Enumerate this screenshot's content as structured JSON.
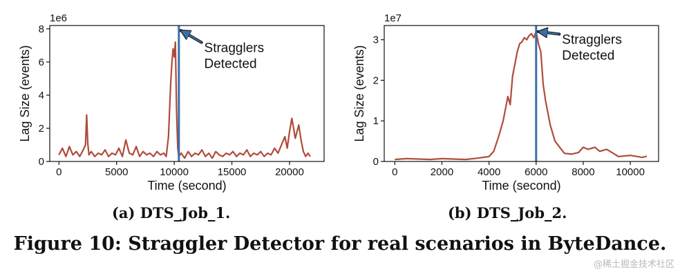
{
  "chart_data": [
    {
      "type": "line",
      "caption": "(a) DTS_Job_1.",
      "xlabel": "Time (second)",
      "ylabel": "Lag Size (events)",
      "y_offset_text": "1e6",
      "xlim": [
        -800,
        23000
      ],
      "ylim": [
        0,
        8.2
      ],
      "x_ticks": [
        0,
        5000,
        10000,
        15000,
        20000
      ],
      "x_tick_labels": [
        "0",
        "5000",
        "10000",
        "15000",
        "20000"
      ],
      "y_ticks": [
        0,
        2,
        4,
        6,
        8
      ],
      "y_tick_labels": [
        "0",
        "2",
        "4",
        "6",
        "8"
      ],
      "grid": false,
      "series": [
        {
          "color": "#b04a3b",
          "x": [
            0,
            300,
            600,
            900,
            1200,
            1500,
            1800,
            2100,
            2300,
            2400,
            2500,
            2600,
            2800,
            3100,
            3400,
            3700,
            4000,
            4300,
            4600,
            4900,
            5200,
            5500,
            5800,
            6100,
            6400,
            6700,
            7000,
            7300,
            7600,
            7900,
            8200,
            8500,
            8800,
            9100,
            9300,
            9500,
            9600,
            9700,
            9800,
            9900,
            10000,
            10100,
            10200,
            10300,
            10400,
            10600,
            10900,
            11200,
            11500,
            11800,
            12100,
            12400,
            12700,
            13000,
            13300,
            13600,
            13900,
            14200,
            14500,
            14800,
            15100,
            15400,
            15700,
            16000,
            16300,
            16600,
            16900,
            17200,
            17500,
            17800,
            18100,
            18400,
            18700,
            19000,
            19300,
            19600,
            19800,
            20000,
            20200,
            20500,
            20800,
            21000,
            21200,
            21400,
            21600,
            21800
          ],
          "y": [
            0.4,
            0.8,
            0.3,
            0.9,
            0.4,
            0.6,
            0.3,
            0.7,
            1.0,
            2.8,
            1.1,
            0.4,
            0.6,
            0.3,
            0.5,
            0.4,
            0.7,
            0.3,
            0.5,
            0.4,
            0.8,
            0.3,
            1.3,
            0.5,
            0.4,
            0.9,
            0.3,
            0.6,
            0.4,
            0.5,
            0.3,
            0.6,
            0.4,
            0.5,
            0.3,
            1.5,
            3.2,
            4.8,
            6.0,
            6.8,
            6.3,
            7.2,
            3.0,
            0.8,
            0.3,
            0.5,
            0.2,
            0.6,
            0.3,
            0.5,
            0.4,
            0.7,
            0.3,
            0.5,
            0.2,
            0.6,
            0.4,
            0.3,
            0.5,
            0.4,
            0.6,
            0.3,
            0.5,
            0.4,
            0.7,
            0.3,
            0.5,
            0.4,
            0.6,
            0.3,
            0.5,
            0.4,
            0.8,
            0.5,
            1.0,
            1.5,
            0.8,
            1.8,
            2.6,
            1.4,
            2.2,
            1.3,
            0.6,
            0.3,
            0.5,
            0.3
          ]
        }
      ],
      "vline": {
        "x": 10400,
        "color": "#3a6fa8"
      },
      "annotation": {
        "lines": [
          "Stragglers",
          "Detected"
        ],
        "x": 12600,
        "y": 6.6,
        "xy": [
          10400,
          7.9
        ]
      }
    },
    {
      "type": "line",
      "caption": "(b) DTS_Job_2.",
      "xlabel": "Time (second)",
      "ylabel": "Lag Size (events)",
      "y_offset_text": "1e7",
      "xlim": [
        -450,
        11200
      ],
      "ylim": [
        0,
        3.35
      ],
      "x_ticks": [
        0,
        2000,
        4000,
        6000,
        8000,
        10000
      ],
      "x_tick_labels": [
        "0",
        "2000",
        "4000",
        "6000",
        "8000",
        "10000"
      ],
      "y_ticks": [
        0,
        1,
        2,
        3
      ],
      "y_tick_labels": [
        "0",
        "1",
        "2",
        "3"
      ],
      "grid": false,
      "series": [
        {
          "color": "#b04a3b",
          "x": [
            0,
            500,
            1000,
            1500,
            2000,
            2500,
            3000,
            3500,
            4000,
            4200,
            4400,
            4600,
            4800,
            4900,
            5000,
            5100,
            5200,
            5300,
            5400,
            5500,
            5600,
            5700,
            5800,
            5900,
            6000,
            6100,
            6200,
            6300,
            6400,
            6600,
            6800,
            7000,
            7200,
            7500,
            7800,
            8000,
            8200,
            8500,
            8700,
            9000,
            9500,
            10000,
            10500,
            10700
          ],
          "y": [
            0.05,
            0.07,
            0.06,
            0.05,
            0.07,
            0.06,
            0.05,
            0.08,
            0.12,
            0.25,
            0.6,
            1.0,
            1.6,
            1.4,
            2.1,
            2.4,
            2.7,
            2.9,
            2.95,
            3.05,
            3.0,
            3.1,
            3.15,
            3.05,
            3.2,
            2.9,
            2.7,
            1.9,
            1.5,
            0.9,
            0.5,
            0.35,
            0.2,
            0.18,
            0.22,
            0.35,
            0.3,
            0.35,
            0.25,
            0.3,
            0.12,
            0.15,
            0.1,
            0.13
          ]
        }
      ],
      "vline": {
        "x": 6000,
        "color": "#3a6fa8"
      },
      "annotation": {
        "lines": [
          "Stragglers",
          "Detected"
        ],
        "x": 7100,
        "y": 2.9,
        "xy": [
          6000,
          3.2
        ]
      }
    }
  ],
  "captions": {
    "sub_a": "(a) DTS_Job_1.",
    "sub_b": "(b) DTS_Job_2.",
    "figure": "Figure 10: Straggler Detector for real scenarios in ByteDance."
  },
  "watermark": "@稀土掘金技术社区"
}
